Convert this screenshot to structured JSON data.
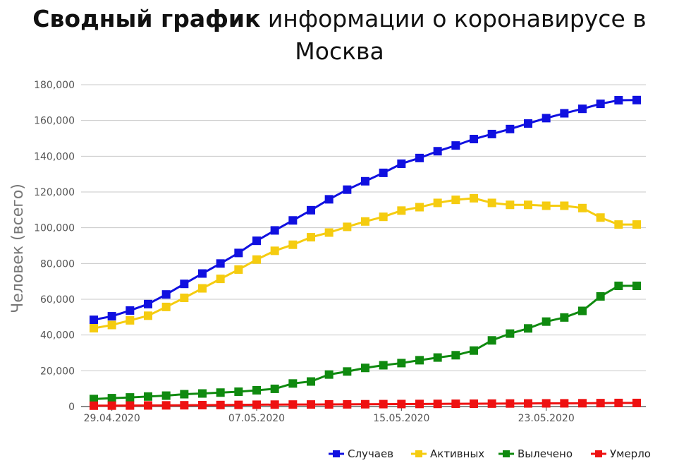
{
  "title": {
    "bold": "Сводный график",
    "rest": " информации о коронавирусе в Москва"
  },
  "chart_data": {
    "type": "line",
    "ylabel": "Человек (всего)",
    "xlabel": "",
    "ylim": [
      0,
      180000
    ],
    "y_ticks": [
      "0",
      "20,000",
      "40,000",
      "60,000",
      "80,000",
      "100,000",
      "120,000",
      "140,000",
      "160,000",
      "180,000"
    ],
    "x_ticks": [
      {
        "label": "29.04.2020",
        "index": 1
      },
      {
        "label": "07.05.2020",
        "index": 9
      },
      {
        "label": "15.05.2020",
        "index": 17
      },
      {
        "label": "23.05.2020",
        "index": 25
      }
    ],
    "x": [
      "28.04.2020",
      "29.04.2020",
      "30.04.2020",
      "01.05.2020",
      "02.05.2020",
      "03.05.2020",
      "04.05.2020",
      "05.05.2020",
      "06.05.2020",
      "07.05.2020",
      "08.05.2020",
      "09.05.2020",
      "10.05.2020",
      "11.05.2020",
      "12.05.2020",
      "13.05.2020",
      "14.05.2020",
      "15.05.2020",
      "16.05.2020",
      "17.05.2020",
      "18.05.2020",
      "19.05.2020",
      "20.05.2020",
      "21.05.2020",
      "22.05.2020",
      "23.05.2020",
      "24.05.2020",
      "25.05.2020",
      "26.05.2020",
      "27.05.2020",
      "28.05.2020"
    ],
    "grid": true,
    "legend_position": "bottom-right",
    "series": [
      {
        "name": "Случаев",
        "color": "#1010e0",
        "values": [
          48500,
          50500,
          53700,
          57300,
          62700,
          68600,
          74400,
          80000,
          85900,
          92700,
          98500,
          104100,
          109800,
          115900,
          121300,
          126000,
          130700,
          135800,
          139000,
          142800,
          146000,
          149600,
          152400,
          155200,
          158300,
          161300,
          164000,
          166500,
          169300,
          171300,
          171400
        ]
      },
      {
        "name": "Активных",
        "color": "#f5cc10",
        "values": [
          43800,
          45600,
          48200,
          50800,
          55700,
          60800,
          66100,
          71400,
          76600,
          82200,
          87100,
          90500,
          94700,
          97300,
          100500,
          103500,
          106100,
          109600,
          111500,
          113900,
          115600,
          116500,
          113900,
          112800,
          112800,
          112300,
          112300,
          111000,
          105700,
          101800,
          101800
        ]
      },
      {
        "name": "Вылечено",
        "color": "#0f8a0f",
        "values": [
          4200,
          4700,
          5100,
          5600,
          6100,
          6900,
          7300,
          7800,
          8300,
          9100,
          9900,
          12900,
          14000,
          17900,
          19600,
          21600,
          23100,
          24300,
          25900,
          27400,
          28700,
          31300,
          37000,
          40800,
          43700,
          47500,
          49800,
          53500,
          61600,
          67500,
          67500
        ]
      },
      {
        "name": "Умерло",
        "color": "#ee1111",
        "values": [
          480,
          510,
          560,
          610,
          660,
          720,
          790,
          860,
          940,
          1020,
          1080,
          1120,
          1150,
          1190,
          1230,
          1290,
          1350,
          1400,
          1440,
          1480,
          1550,
          1580,
          1640,
          1700,
          1740,
          1780,
          1800,
          1850,
          1920,
          2000,
          2000
        ]
      }
    ]
  }
}
